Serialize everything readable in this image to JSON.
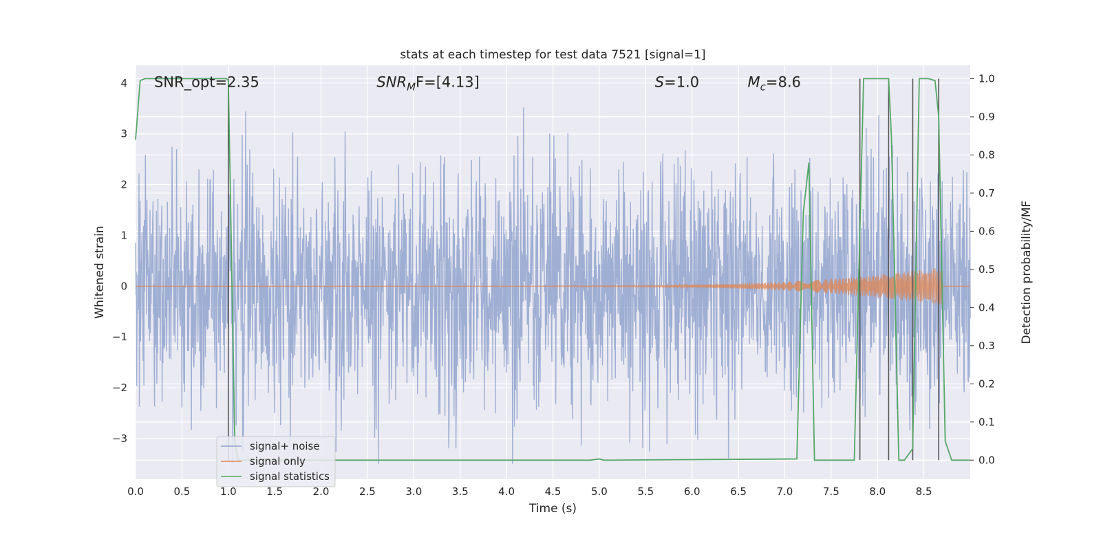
{
  "chart_data": {
    "type": "line",
    "title": "stats at each timestep for test data 7521 [signal=1]",
    "xlabel": "Time (s)",
    "ylabel_left": "Whitened strain",
    "ylabel_right": "Detection probability/MF",
    "xlim": [
      0.0,
      9.0
    ],
    "ylim_left": [
      -3.8,
      4.35
    ],
    "ylim_right": [
      -0.05,
      1.035
    ],
    "x_ticks": [
      "0.0",
      "0.5",
      "1.0",
      "1.5",
      "2.0",
      "2.5",
      "3.0",
      "3.5",
      "4.0",
      "4.5",
      "5.0",
      "5.5",
      "6.0",
      "6.5",
      "7.0",
      "7.5",
      "8.0",
      "8.5"
    ],
    "x_tick_values": [
      0.0,
      0.5,
      1.0,
      1.5,
      2.0,
      2.5,
      3.0,
      3.5,
      4.0,
      4.5,
      5.0,
      5.5,
      6.0,
      6.5,
      7.0,
      7.5,
      8.0,
      8.5
    ],
    "y_left_ticks": [
      "−3",
      "−2",
      "−1",
      "0",
      "1",
      "2",
      "3",
      "4"
    ],
    "y_left_tick_values": [
      -3,
      -2,
      -1,
      0,
      1,
      2,
      3,
      4
    ],
    "y_right_ticks": [
      "0.0",
      "0.1",
      "0.2",
      "0.3",
      "0.4",
      "0.5",
      "0.6",
      "0.7",
      "0.8",
      "0.9",
      "1.0"
    ],
    "y_right_tick_values": [
      0.0,
      0.1,
      0.2,
      0.3,
      0.4,
      0.5,
      0.6,
      0.7,
      0.8,
      0.9,
      1.0
    ],
    "grid": true,
    "legend_position": "lower-left",
    "annotations": [
      {
        "text": "SNR_opt=2.35",
        "x": 0.2,
        "y": 4.02
      },
      {
        "main": "SNR",
        "sub": "M",
        "rest": "F=[4.13]",
        "x": 2.6,
        "y": 4.02
      },
      {
        "main": "S",
        "rest": "=1.0",
        "x": 5.6,
        "y": 4.02
      },
      {
        "main": "M",
        "sub": "c",
        "rest": "=8.6",
        "x": 6.6,
        "y": 4.02
      }
    ],
    "series": [
      {
        "name": "signal+ noise",
        "color": "#8c9fcb",
        "noise": {
          "samples": 2200,
          "envelope_max": 4.0,
          "envelope_min": -3.5,
          "typical_amplitude": 1.2
        }
      },
      {
        "name": "signal only",
        "color": "#dd8452",
        "chirp": {
          "start_time": 4.5,
          "end_time": 8.7,
          "start_amplitude": 0.01,
          "end_amplitude": 0.38
        }
      },
      {
        "name": "signal statistics",
        "color": "#55a868",
        "axis": "right",
        "x": [
          0.0,
          0.05,
          0.1,
          0.2,
          0.6,
          0.98,
          1.0,
          1.03,
          1.07,
          1.1,
          4.9,
          5.0,
          5.05,
          7.13,
          7.2,
          7.26,
          7.32,
          7.75,
          7.85,
          8.12,
          8.15,
          8.23,
          8.29,
          8.38,
          8.45,
          8.55,
          8.62,
          8.66,
          8.73,
          8.8,
          9.0
        ],
        "y": [
          0.84,
          0.995,
          1.0,
          1.0,
          1.0,
          1.0,
          0.995,
          0.6,
          0.05,
          0.0,
          0.0,
          0.003,
          0.0,
          0.003,
          0.65,
          0.78,
          0.0,
          0.0,
          1.0,
          1.0,
          0.85,
          0.0,
          0.0,
          0.03,
          1.0,
          1.0,
          0.995,
          0.9,
          0.05,
          0.0,
          0.0
        ]
      }
    ],
    "vertical_lines": [
      {
        "x": 1.0,
        "y_top": 1.0
      },
      {
        "x": 7.81,
        "y_top": 1.0
      },
      {
        "x": 8.12,
        "y_top": 1.0
      },
      {
        "x": 8.38,
        "y_top": 1.0
      },
      {
        "x": 8.66,
        "y_top": 1.0
      }
    ]
  }
}
